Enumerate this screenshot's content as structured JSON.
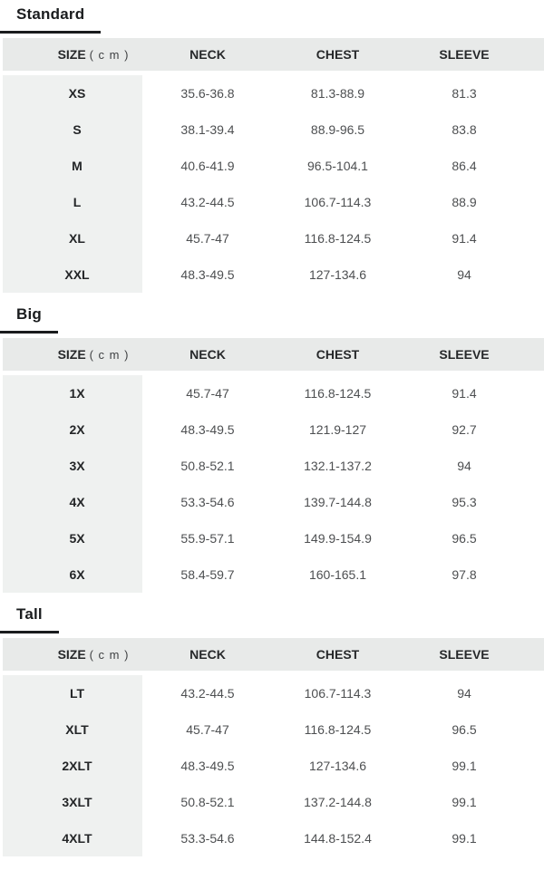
{
  "colors": {
    "header_row_bg": "#e8eae9",
    "size_column_bg": "#eff1f0",
    "title_text": "#1a1c1e",
    "title_underline": "#1a1c1e",
    "header_text": "#26282a",
    "size_text": "#232527",
    "value_text": "#4d4f51",
    "page_bg": "#ffffff"
  },
  "table_header": {
    "size_label": "SIZE",
    "size_unit": "( c m )",
    "columns": [
      "NECK",
      "CHEST",
      "SLEEVE"
    ]
  },
  "sections": [
    {
      "title": "Standard",
      "rows": [
        {
          "size": "XS",
          "neck": "35.6-36.8",
          "chest": "81.3-88.9",
          "sleeve": "81.3"
        },
        {
          "size": "S",
          "neck": "38.1-39.4",
          "chest": "88.9-96.5",
          "sleeve": "83.8"
        },
        {
          "size": "M",
          "neck": "40.6-41.9",
          "chest": "96.5-104.1",
          "sleeve": "86.4"
        },
        {
          "size": "L",
          "neck": "43.2-44.5",
          "chest": "106.7-114.3",
          "sleeve": "88.9"
        },
        {
          "size": "XL",
          "neck": "45.7-47",
          "chest": "116.8-124.5",
          "sleeve": "91.4"
        },
        {
          "size": "XXL",
          "neck": "48.3-49.5",
          "chest": "127-134.6",
          "sleeve": "94"
        }
      ]
    },
    {
      "title": "Big",
      "rows": [
        {
          "size": "1X",
          "neck": "45.7-47",
          "chest": "116.8-124.5",
          "sleeve": "91.4"
        },
        {
          "size": "2X",
          "neck": "48.3-49.5",
          "chest": "121.9-127",
          "sleeve": "92.7"
        },
        {
          "size": "3X",
          "neck": "50.8-52.1",
          "chest": "132.1-137.2",
          "sleeve": "94"
        },
        {
          "size": "4X",
          "neck": "53.3-54.6",
          "chest": "139.7-144.8",
          "sleeve": "95.3"
        },
        {
          "size": "5X",
          "neck": "55.9-57.1",
          "chest": "149.9-154.9",
          "sleeve": "96.5"
        },
        {
          "size": "6X",
          "neck": "58.4-59.7",
          "chest": "160-165.1",
          "sleeve": "97.8"
        }
      ]
    },
    {
      "title": "Tall",
      "rows": [
        {
          "size": "LT",
          "neck": "43.2-44.5",
          "chest": "106.7-114.3",
          "sleeve": "94"
        },
        {
          "size": "XLT",
          "neck": "45.7-47",
          "chest": "116.8-124.5",
          "sleeve": "96.5"
        },
        {
          "size": "2XLT",
          "neck": "48.3-49.5",
          "chest": "127-134.6",
          "sleeve": "99.1"
        },
        {
          "size": "3XLT",
          "neck": "50.8-52.1",
          "chest": "137.2-144.8",
          "sleeve": "99.1"
        },
        {
          "size": "4XLT",
          "neck": "53.3-54.6",
          "chest": "144.8-152.4",
          "sleeve": "99.1"
        }
      ]
    }
  ]
}
